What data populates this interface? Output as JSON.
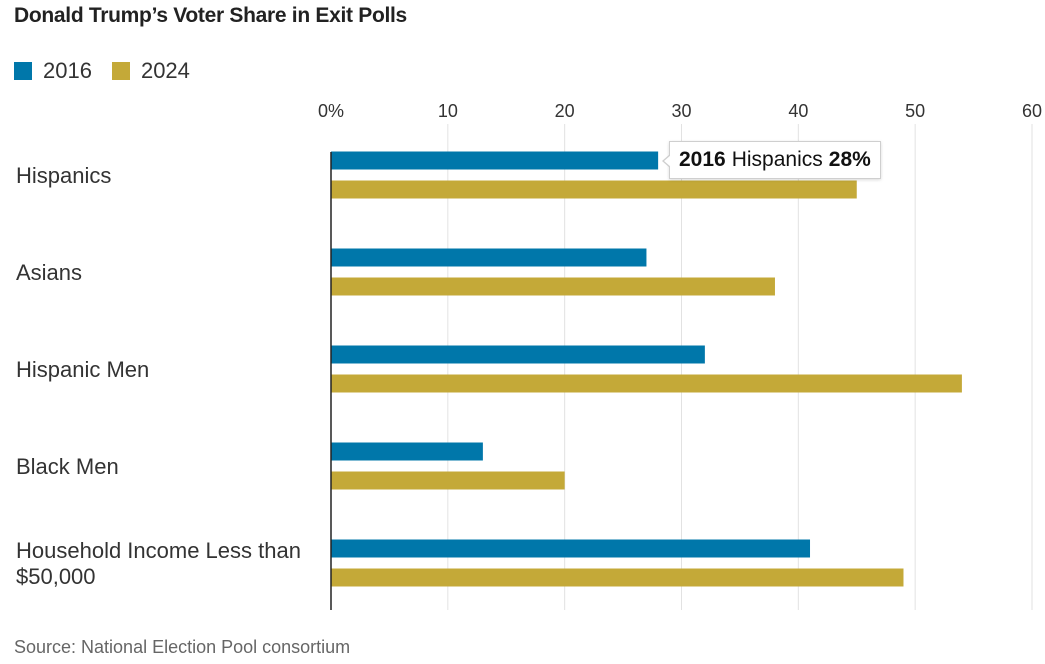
{
  "colors": {
    "series_2016": "#0077aa",
    "series_2024": "#c4a938",
    "grid": "#e2e2e2",
    "axis": "#222222",
    "text": "#333333"
  },
  "chart_data": {
    "type": "bar",
    "orientation": "horizontal",
    "title": "Donald Trump’s Voter Share in Exit Polls",
    "categories": [
      "Hispanics",
      "Asians",
      "Hispanic Men",
      "Black Men",
      "Household Income Less than $50,000"
    ],
    "series": [
      {
        "name": "2016",
        "values": [
          28,
          27,
          32,
          13,
          41
        ]
      },
      {
        "name": "2024",
        "values": [
          45,
          38,
          54,
          20,
          49
        ]
      }
    ],
    "xlim": [
      0,
      60
    ],
    "x_ticks": [
      "0%",
      "10",
      "20",
      "30",
      "40",
      "50",
      "60"
    ],
    "x_tick_values": [
      0,
      10,
      20,
      30,
      40,
      50,
      60
    ],
    "grid": true,
    "legend": "top-left",
    "source": "Source: National Election Pool consortium",
    "tooltip": {
      "series": "2016",
      "category": "Hispanics",
      "value": "28%"
    }
  }
}
